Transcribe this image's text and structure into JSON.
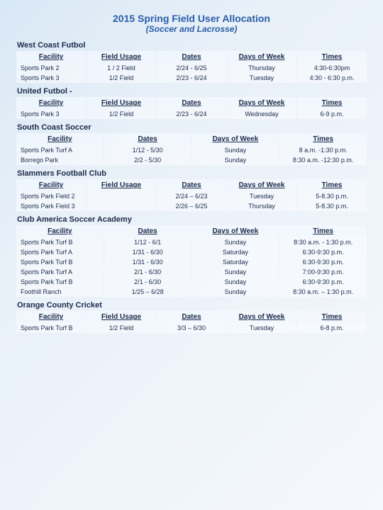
{
  "title": "2015 Spring Field User Allocation",
  "subtitle": "(Soccer and Lacrosse)",
  "sections": [
    {
      "name": "West Coast Futbol",
      "columns": [
        "Facility",
        "Field Usage",
        "Dates",
        "Days of Week",
        "Times"
      ],
      "rows": [
        [
          "Sports Park 2",
          "1 / 2 Field",
          "2/24 - 6/25",
          "Thursday",
          "4:30-6:30pm"
        ],
        [
          "Sports Park 3",
          "1/2 Field",
          "2/23 - 6/24",
          "Tuesday",
          "4:30 - 6:30 p.m."
        ]
      ]
    },
    {
      "name": "United Futbol -",
      "columns": [
        "Facility",
        "Field Usage",
        "Dates",
        "Days of Week",
        "Times"
      ],
      "rows": [
        [
          "Sports Park 3",
          "1/2 Field",
          "2/23 - 6/24",
          "Wednesday",
          "6-9 p.m."
        ]
      ]
    },
    {
      "name": "South Coast Soccer",
      "columns": [
        "Facility",
        "Dates",
        "Days of Week",
        "Times"
      ],
      "rows": [
        [
          "Sports Park Turf A",
          "1/12 - 5/30",
          "Sunday",
          "8 a.m. -1:30 p.m."
        ],
        [
          "Borrego Park",
          "2/2 - 5/30",
          "Sunday",
          "8:30 a.m. -12:30 p.m."
        ]
      ]
    },
    {
      "name": "Slammers Football Club",
      "columns": [
        "Facility",
        "Field Usage",
        "Dates",
        "Days of Week",
        "Times"
      ],
      "rows": [
        [
          "Sports Park Field 2",
          "",
          "2/24 – 6/23",
          "Tuesday",
          "5-8.30 p.m."
        ],
        [
          "Sports Park Field 3",
          "",
          "2/26 – 6/25",
          "Thursday",
          "5-8.30 p.m."
        ]
      ]
    },
    {
      "name": "Club America Soccer Academy",
      "columns": [
        "Facility",
        "Dates",
        "Days of Week",
        "Times"
      ],
      "rows": [
        [
          "Sports Park Turf B",
          "1/12 - 6/1",
          "Sunday",
          "8:30 a.m. - 1:30 p.m."
        ],
        [
          "Sports Park Turf A",
          "1/31 - 6/30",
          "Saturday",
          "6:30-9:30 p.m."
        ],
        [
          "Sports Park Turf B",
          "1/31 - 6/30",
          "Saturday",
          "6:30-9:30 p.m."
        ],
        [
          "Sports Park Turf A",
          "2/1 - 6/30",
          "Sunday",
          "7:00-9:30 p.m."
        ],
        [
          "Sports Park Turf B",
          "2/1 - 6/30",
          "Sunday",
          "6:30-9:30 p.m."
        ],
        [
          "Foothill Ranch",
          "1/25 – 6/28",
          "Sunday",
          "8:30 a.m. – 1:30 p.m."
        ]
      ]
    },
    {
      "name": "Orange County Cricket",
      "columns": [
        "Facility",
        "Field Usage",
        "Dates",
        "Days of Week",
        "Times"
      ],
      "rows": [
        [
          "Sports Park Turf B",
          "1/2 Field",
          "3/3 – 6/30",
          "Tuesday",
          "6-8 p.m."
        ]
      ]
    }
  ]
}
